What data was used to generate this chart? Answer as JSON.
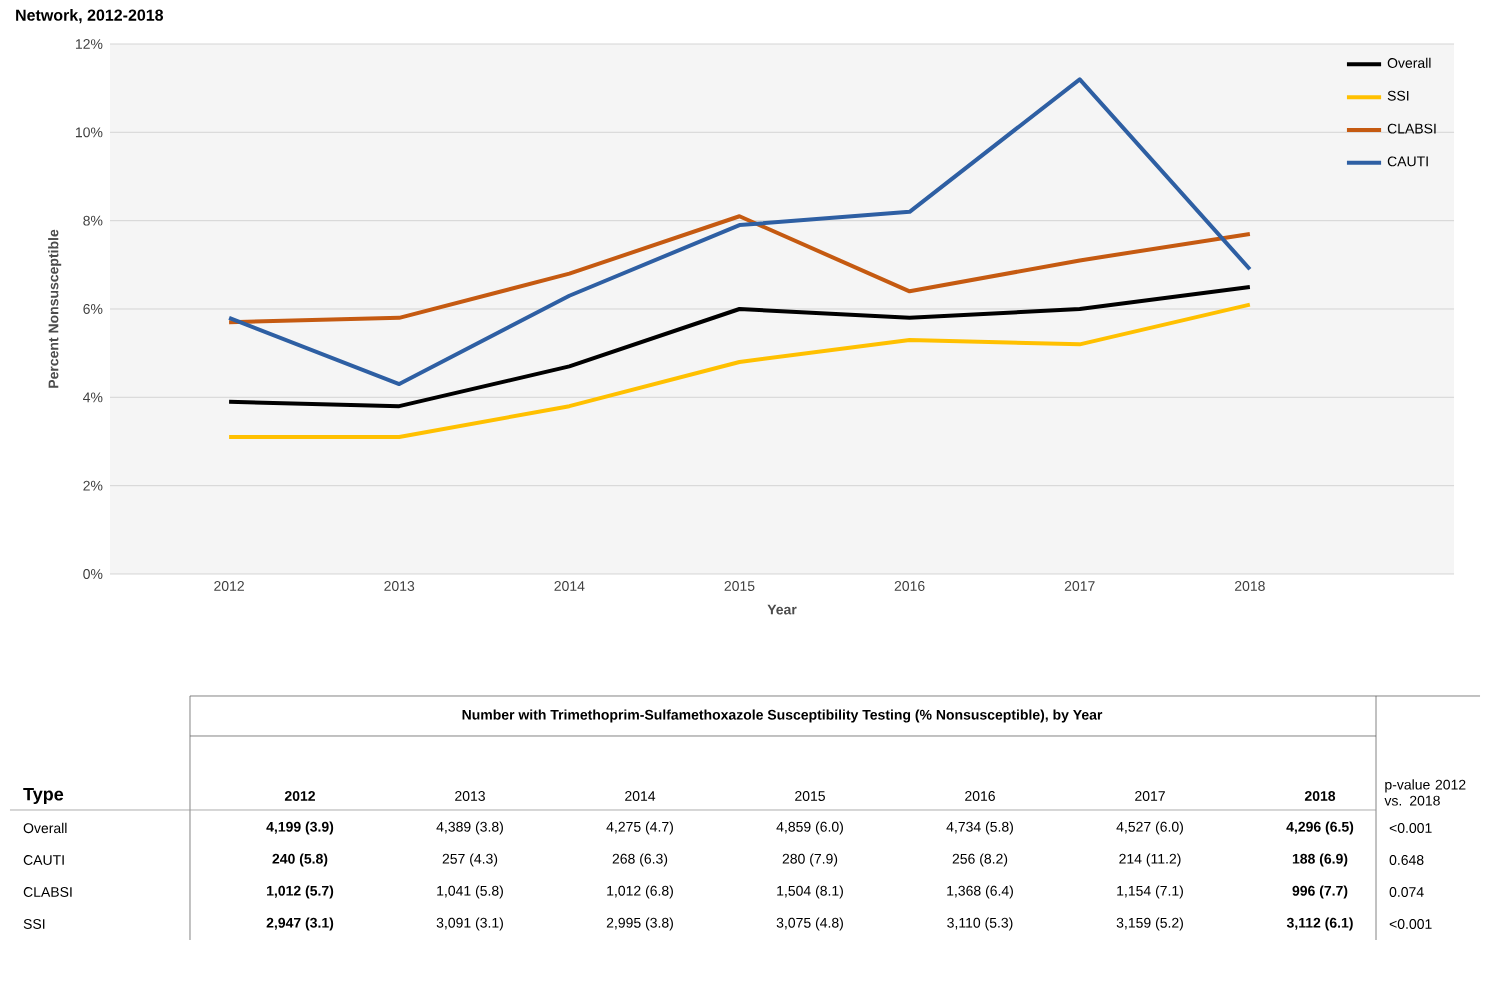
{
  "chart_data": {
    "type": "line",
    "title": "Network, 2012-2018",
    "xlabel": "Year",
    "ylabel": "Percent Nonsusceptible",
    "categories": [
      "2012",
      "2013",
      "2014",
      "2015",
      "2016",
      "2017",
      "2018"
    ],
    "series": [
      {
        "name": "Overall",
        "color": "#000000",
        "values": [
          3.9,
          3.8,
          4.7,
          6.0,
          5.8,
          6.0,
          6.5
        ],
        "value_labels": [
          "4,199 (3.9)",
          "4,389 (3.8)",
          "4,275 (4.7)",
          "4,859 (6.0)",
          "4,734 (5.8)",
          "4,527 (6.0)",
          "4,296 (6.5)"
        ]
      },
      {
        "name": "SSI",
        "color": "#ffc000",
        "values": [
          3.1,
          3.1,
          3.8,
          4.8,
          5.3,
          5.2,
          6.1
        ],
        "value_labels": [
          "2,947 (3.1)",
          "3,091 (3.1)",
          "2,995 (3.8)",
          "3,075 (4.8)",
          "3,110 (5.3)",
          "3,159 (5.2)",
          "3,112 (6.1)"
        ]
      },
      {
        "name": "CLABSI",
        "color": "#c55a11",
        "values": [
          5.7,
          5.8,
          6.8,
          8.1,
          6.4,
          7.1,
          7.7
        ],
        "value_labels": [
          "1,012 (5.7)",
          "1,041 (5.8)",
          "1,012 (6.8)",
          "1,504 (8.1)",
          "1,368 (6.4)",
          "1,154 (7.1)",
          "996 (7.7)"
        ]
      },
      {
        "name": "CAUTI",
        "color": "#2e5fa3",
        "values": [
          5.8,
          4.3,
          6.3,
          7.9,
          8.2,
          11.2,
          6.9
        ],
        "value_labels": [
          "240 (5.8)",
          "257 (4.3)",
          "268 (6.3)",
          "280 (7.9)",
          "256 (8.2)",
          "214 (11.2)",
          "188 (6.9)"
        ]
      }
    ],
    "ylim": [
      0,
      12
    ],
    "yticks": [
      {
        "value": 0,
        "label": "0%"
      },
      {
        "value": 2,
        "label": "2%"
      },
      {
        "value": 4,
        "label": "4%"
      },
      {
        "value": 6,
        "label": "6%"
      },
      {
        "value": 8,
        "label": "8%"
      },
      {
        "value": 10,
        "label": "10%"
      },
      {
        "value": 12,
        "label": "12%"
      }
    ],
    "grid": "y",
    "legend": "top right",
    "annotations": [
      "Number with Trimethoprim-Sulfamethoxazole Susceptibility Testing (% Nonsusceptible), by Year",
      "Type",
      "p-value 2012 vs. 2018",
      "<0.001",
      "0.648",
      "0.074",
      "<0.001"
    ]
  }
}
